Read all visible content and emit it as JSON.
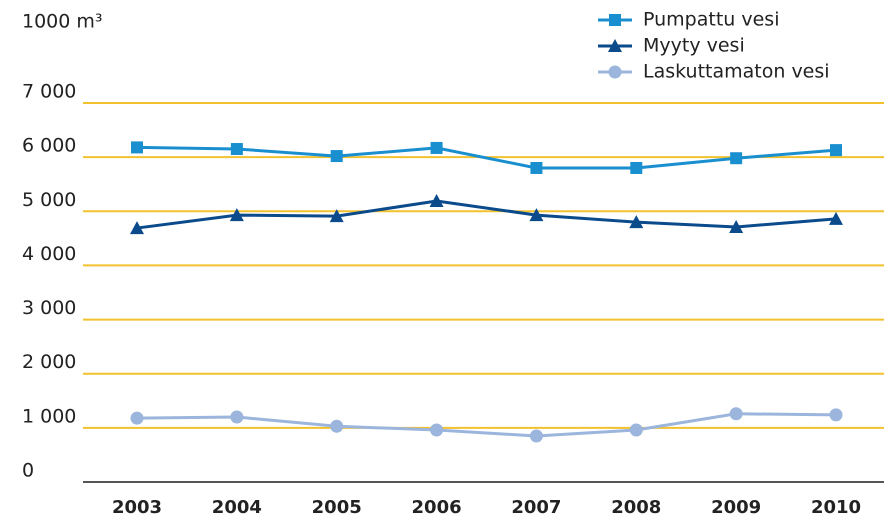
{
  "chart_data": {
    "type": "line",
    "y_unit": "1000 m³",
    "categories": [
      "2003",
      "2004",
      "2005",
      "2006",
      "2007",
      "2008",
      "2009",
      "2010"
    ],
    "series": [
      {
        "name": "Pumpattu vesi",
        "color": "#1a8fd0",
        "marker": "square",
        "values": [
          6180,
          6150,
          6020,
          6170,
          5800,
          5800,
          5980,
          6130
        ]
      },
      {
        "name": "Myyty vesi",
        "color": "#0b4a8b",
        "marker": "triangle",
        "values": [
          4690,
          4930,
          4910,
          5190,
          4930,
          4800,
          4710,
          4860
        ]
      },
      {
        "name": "Laskuttamaton vesi",
        "color": "#9bb5dc",
        "marker": "circle",
        "values": [
          1180,
          1200,
          1030,
          960,
          850,
          960,
          1260,
          1240
        ]
      }
    ],
    "ylim": [
      0,
      7000
    ],
    "yticks": [
      0,
      {
        "value": 1000,
        "label": "1 000"
      },
      {
        "value": 2000,
        "label": "2 000"
      },
      {
        "value": 3000,
        "label": "3 000"
      },
      {
        "value": 4000,
        "label": "4 000"
      },
      {
        "value": 5000,
        "label": "5 000"
      },
      {
        "value": 6000,
        "label": "6 000"
      },
      {
        "value": 7000,
        "label": "7 000"
      }
    ],
    "grid": true,
    "grid_color": "#f2c12e",
    "legend": "top-right"
  }
}
